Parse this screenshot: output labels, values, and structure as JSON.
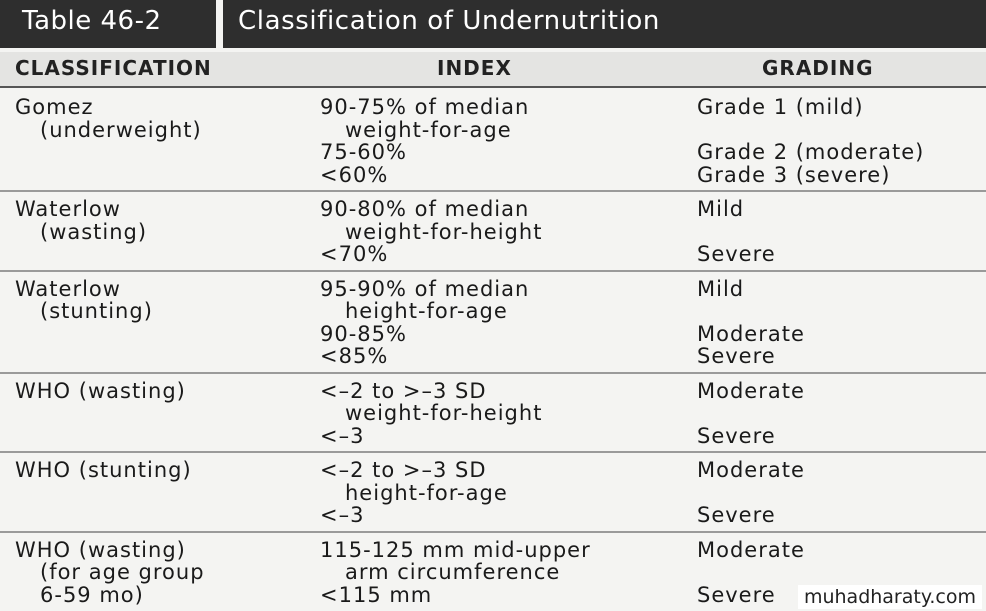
{
  "header": {
    "table_number": "Table 46-2",
    "title": "Classification of Undernutrition"
  },
  "table": {
    "columns": [
      "CLASSIFICATION",
      "INDEX",
      "GRADING"
    ],
    "rows": [
      {
        "classification": [
          "Gomez",
          "(underweight)"
        ],
        "index": [
          [
            "90-75% of median",
            "weight-for-age"
          ],
          [
            "75-60%"
          ],
          [
            "<60%"
          ]
        ],
        "grading": [
          "Grade 1 (mild)",
          "Grade 2 (moderate)",
          "Grade 3 (severe)"
        ]
      },
      {
        "classification": [
          "Waterlow",
          "(wasting)"
        ],
        "index": [
          [
            "90-80% of median",
            "weight-for-height"
          ],
          [
            "<70%"
          ]
        ],
        "grading": [
          "Mild",
          "Severe"
        ]
      },
      {
        "classification": [
          "Waterlow",
          "(stunting)"
        ],
        "index": [
          [
            "95-90% of median",
            "height-for-age"
          ],
          [
            "90-85%"
          ],
          [
            "<85%"
          ]
        ],
        "grading": [
          "Mild",
          "Moderate",
          "Severe"
        ]
      },
      {
        "classification": [
          "WHO (wasting)"
        ],
        "index": [
          [
            "<–2 to >–3 SD",
            "weight-for-height"
          ],
          [
            "<–3"
          ]
        ],
        "grading": [
          "Moderate",
          "Severe"
        ]
      },
      {
        "classification": [
          "WHO (stunting)"
        ],
        "index": [
          [
            "<–2 to >–3 SD",
            "height-for-age"
          ],
          [
            "<–3"
          ]
        ],
        "grading": [
          "Moderate",
          "Severe"
        ]
      },
      {
        "classification": [
          "WHO (wasting)",
          "(for age group",
          "6-59 mo)"
        ],
        "index": [
          [
            "115-125 mm mid-upper",
            "arm circumference"
          ],
          [
            "<115 mm"
          ]
        ],
        "grading": [
          "Moderate",
          "Severe"
        ]
      }
    ]
  },
  "watermark": "muhadharaty.com"
}
